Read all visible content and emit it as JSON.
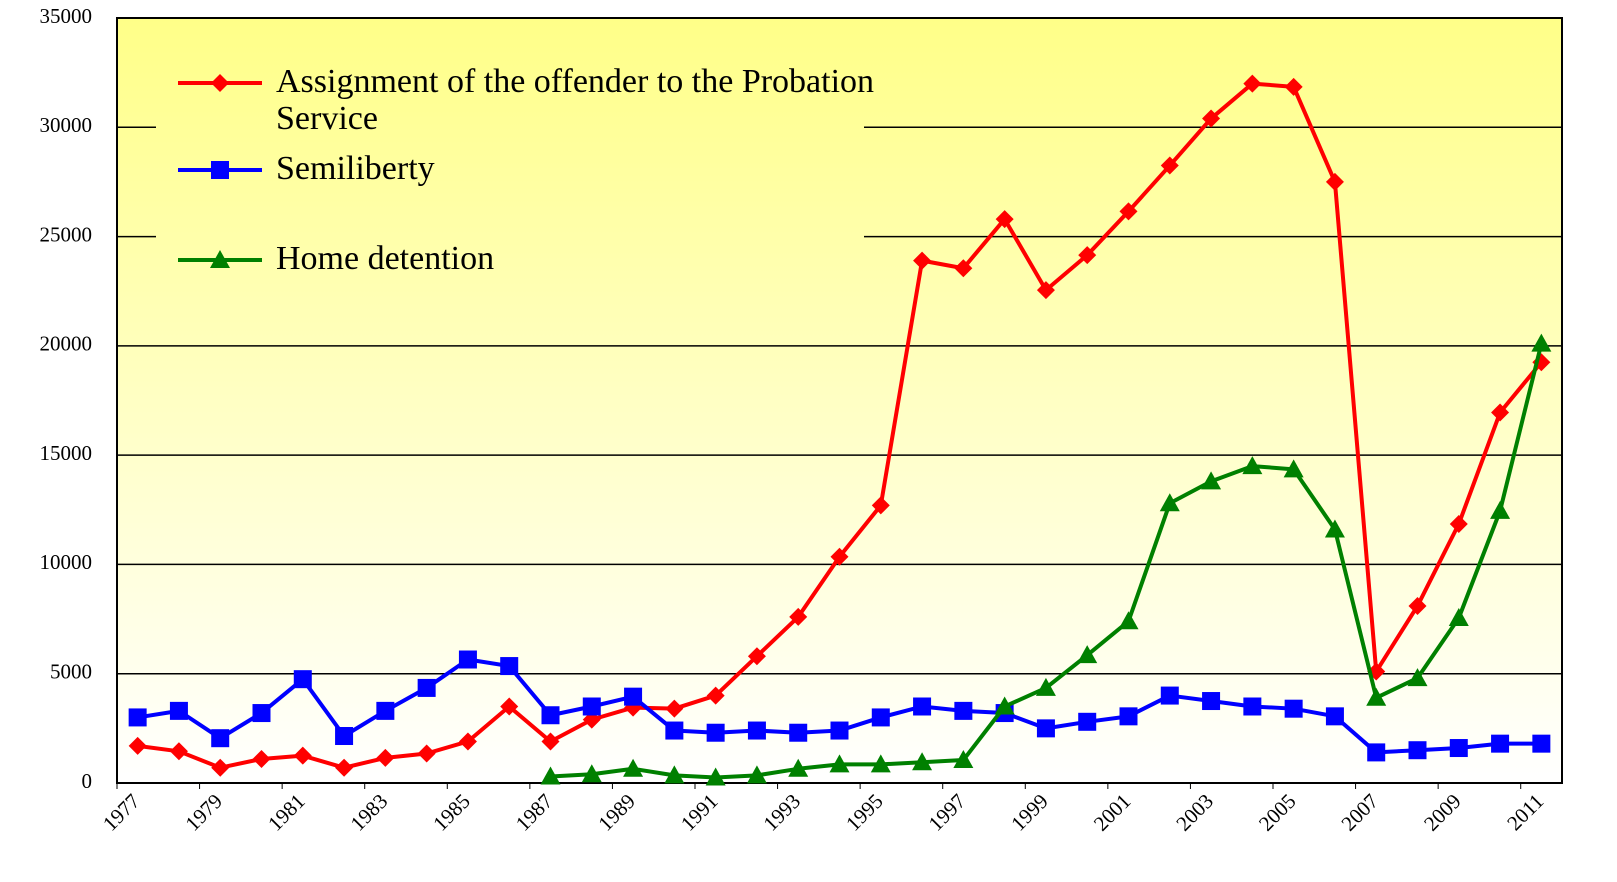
{
  "chart_data": {
    "type": "line",
    "categories": [
      "1977",
      null,
      "1979",
      null,
      "1981",
      null,
      "1983",
      null,
      "1985",
      null,
      "1987",
      null,
      "1989",
      null,
      "1991",
      null,
      "1993",
      null,
      "1995",
      null,
      "1997",
      null,
      "1999",
      null,
      "2001",
      null,
      "2003",
      null,
      "2005",
      null,
      "2007",
      null,
      "2009",
      null,
      "2011"
    ],
    "series": [
      {
        "name": "Assignment of the offender to the Probation Service",
        "color": "#ff0000",
        "marker": "diamond",
        "values": [
          1700,
          1450,
          700,
          1100,
          1250,
          700,
          1150,
          1350,
          1900,
          3500,
          1900,
          2900,
          3450,
          3400,
          4000,
          5800,
          7600,
          10350,
          12700,
          23900,
          23550,
          25800,
          22550,
          24150,
          26150,
          28250,
          30400,
          32000,
          31850,
          27500,
          5100,
          8100,
          11850,
          16950,
          19250
        ]
      },
      {
        "name": "Semiliberty",
        "color": "#0000ff",
        "marker": "square",
        "values": [
          3000,
          3300,
          2050,
          3200,
          4750,
          2150,
          3300,
          4350,
          5650,
          5350,
          3100,
          3500,
          3950,
          2400,
          2300,
          2400,
          2300,
          2400,
          3000,
          3500,
          3300,
          3200,
          2500,
          2800,
          3050,
          4000,
          3750,
          3500,
          3400,
          3050,
          1400,
          1500,
          1600,
          1800,
          1800
        ]
      },
      {
        "name": "Home detention",
        "color": "#008000",
        "marker": "triangle",
        "values": [
          null,
          null,
          null,
          null,
          null,
          null,
          null,
          null,
          null,
          null,
          300,
          400,
          650,
          350,
          250,
          350,
          650,
          850,
          850,
          950,
          1050,
          3500,
          4350,
          5850,
          7400,
          12800,
          13800,
          14500,
          14350,
          11600,
          3900,
          4800,
          7550,
          12450,
          20100
        ]
      }
    ],
    "ylim": [
      0,
      35000
    ],
    "yticks": [
      0,
      5000,
      10000,
      15000,
      20000,
      25000,
      30000,
      35000
    ],
    "grid": true
  }
}
